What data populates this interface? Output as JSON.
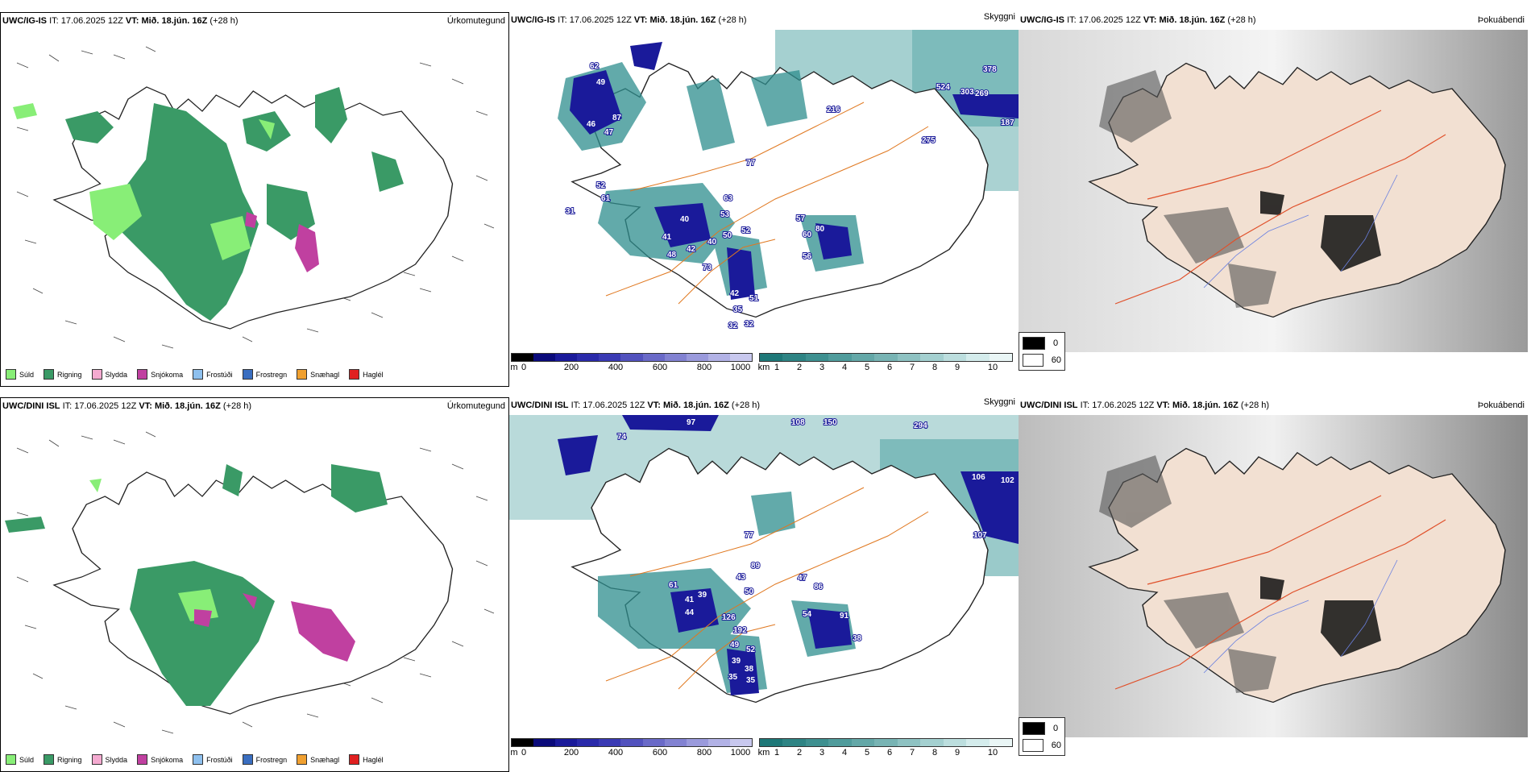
{
  "rows": [
    {
      "model": "UWC/IG-IS",
      "it_label": "IT:",
      "it_value": "17.06.2025 12Z",
      "vt_label": "VT:",
      "vt_value": "Mið. 18.jún. 16Z",
      "lead": "(+28 h)",
      "precip_labels": [
        "62",
        "49",
        "87",
        "47",
        "46",
        "52",
        "61",
        "31",
        "40",
        "41",
        "53",
        "50",
        "52",
        "40",
        "42",
        "48",
        "73",
        "63",
        "57",
        "60",
        "80",
        "56",
        "42",
        "51",
        "35",
        "32",
        "32",
        "77",
        "216",
        "275",
        "187",
        "524",
        "303",
        "269",
        "378"
      ]
    },
    {
      "model": "UWC/DINI ISL",
      "it_label": "IT:",
      "it_value": "17.06.2025 12Z",
      "vt_label": "VT:",
      "vt_value": "Mið. 18.jún. 16Z",
      "lead": "(+28 h)",
      "precip_labels": [
        "97",
        "108",
        "150",
        "294",
        "74",
        "106",
        "102",
        "107",
        "77",
        "89",
        "61",
        "39",
        "50",
        "43",
        "41",
        "44",
        "126",
        "47",
        "86",
        "91",
        "54",
        "192",
        "38",
        "49",
        "52",
        "39",
        "38",
        "35",
        "35"
      ]
    }
  ],
  "panel_titles": {
    "precip_type": "Úrkomutegund",
    "visibility": "Skyggni",
    "fog_index": "Þokuábendi"
  },
  "precip_legend": [
    {
      "label": "Súld",
      "color": "#88ee77"
    },
    {
      "label": "Rigning",
      "color": "#3a9a66"
    },
    {
      "label": "Slydda",
      "color": "#f4aad0"
    },
    {
      "label": "Snjókoma",
      "color": "#c040a0"
    },
    {
      "label": "Frostúði",
      "color": "#8ec0ee"
    },
    {
      "label": "Frostregn",
      "color": "#3a6ec0"
    },
    {
      "label": "Snæhagl",
      "color": "#f0a030"
    },
    {
      "label": "Haglél",
      "color": "#e02020"
    }
  ],
  "ceiling_bar": {
    "unit": "m",
    "ticks": [
      "0",
      "200",
      "400",
      "600",
      "800",
      "1000"
    ],
    "colors": [
      "#000000",
      "#0a0a7a",
      "#1a1a9a",
      "#2a2aaa",
      "#3a3ab4",
      "#5252be",
      "#6a6ac8",
      "#8282d2",
      "#9a9adc",
      "#b2b2e6",
      "#c8c8ee"
    ]
  },
  "visibility_bar": {
    "unit": "km",
    "ticks": [
      "1",
      "2",
      "3",
      "4",
      "5",
      "6",
      "7",
      "8",
      "9",
      "10"
    ],
    "colors": [
      "#1e7878",
      "#2e8484",
      "#3e9090",
      "#509c9c",
      "#64a8a8",
      "#78b4b4",
      "#8ec2c2",
      "#a4d0d0",
      "#bcdede",
      "#d4ecec",
      "#eaf6f6"
    ]
  },
  "fog_legend": [
    {
      "value": "0",
      "color": "#000000"
    },
    {
      "value": "60",
      "color": "#ffffff"
    }
  ]
}
